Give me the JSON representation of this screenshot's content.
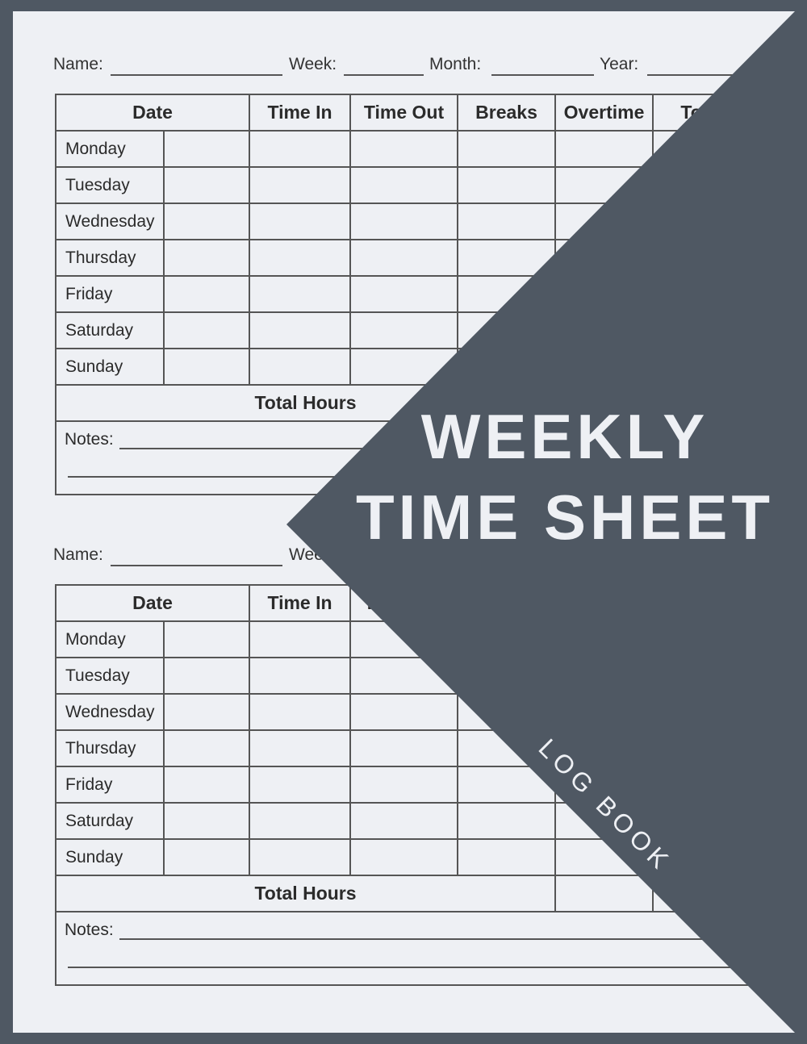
{
  "form": {
    "name_label": "Name:",
    "week_label": "Week:",
    "month_label": "Month:",
    "year_label": "Year:",
    "headers": [
      "Date",
      "Time In",
      "Time Out",
      "Breaks",
      "Overtime",
      "Total"
    ],
    "days": [
      "Monday",
      "Tuesday",
      "Wednesday",
      "Thursday",
      "Friday",
      "Saturday",
      "Sunday"
    ],
    "total_label": "Total Hours",
    "notes_label": "Notes:"
  },
  "cover": {
    "title_line1": "WEEKLY",
    "title_line2": "TIME SHEET",
    "subtitle": "LOG BOOK",
    "bg_color": "#4f5863",
    "page_color": "#eef0f4"
  }
}
